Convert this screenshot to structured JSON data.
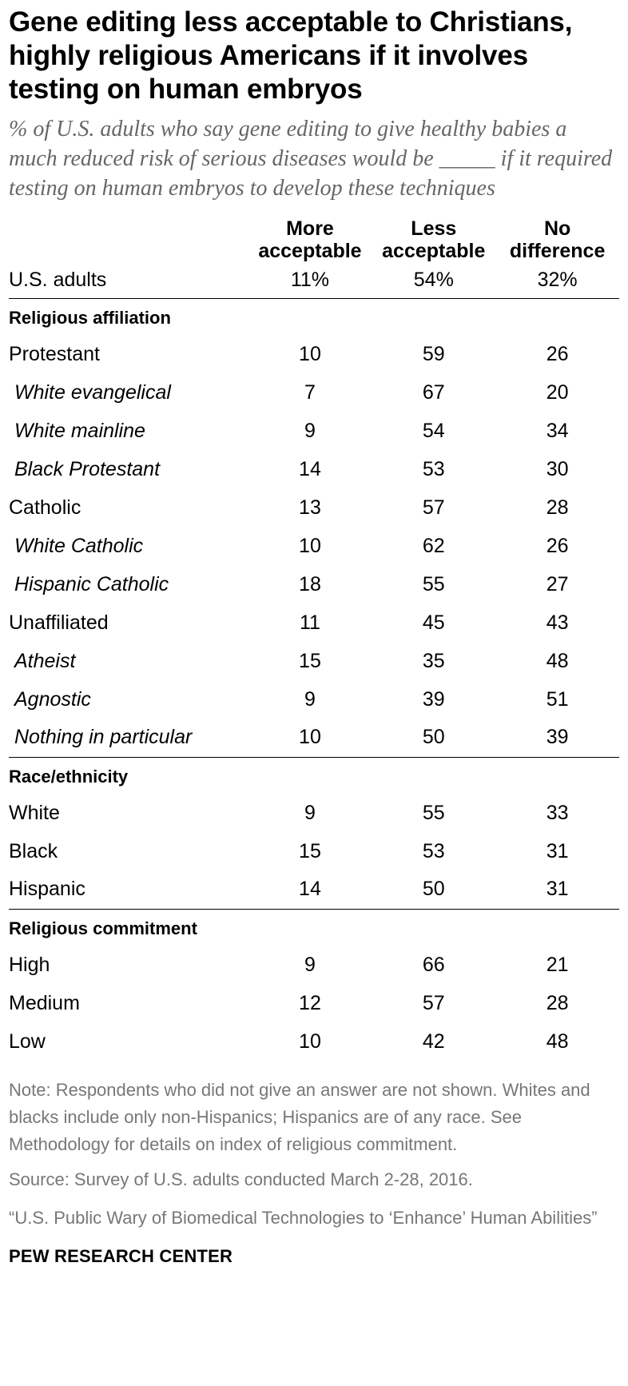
{
  "chart_data": {
    "type": "table",
    "title": "Gene editing less acceptable to Christians, highly religious Americans if it involves testing on human embryos",
    "subtitle": "% of U.S. adults who say gene editing to give healthy babies a much reduced risk of serious diseases would be _____ if it required testing on human embryos to develop these techniques",
    "columns": [
      "More acceptable",
      "Less acceptable",
      "No difference"
    ],
    "columns_lines": [
      [
        "More",
        "acceptable"
      ],
      [
        "Less",
        "acceptable"
      ],
      [
        "No",
        "difference"
      ]
    ],
    "total": {
      "label": "U.S. adults",
      "values": [
        "11%",
        "54%",
        "32%"
      ]
    },
    "groups": [
      {
        "name": "Religious affiliation",
        "rows": [
          {
            "label": "Protestant",
            "sub": false,
            "values": [
              10,
              59,
              26
            ]
          },
          {
            "label": "White evangelical",
            "sub": true,
            "values": [
              7,
              67,
              20
            ]
          },
          {
            "label": "White mainline",
            "sub": true,
            "values": [
              9,
              54,
              34
            ]
          },
          {
            "label": "Black Protestant",
            "sub": true,
            "values": [
              14,
              53,
              30
            ]
          },
          {
            "label": "Catholic",
            "sub": false,
            "values": [
              13,
              57,
              28
            ]
          },
          {
            "label": "White Catholic",
            "sub": true,
            "values": [
              10,
              62,
              26
            ]
          },
          {
            "label": "Hispanic Catholic",
            "sub": true,
            "values": [
              18,
              55,
              27
            ]
          },
          {
            "label": "Unaffiliated",
            "sub": false,
            "values": [
              11,
              45,
              43
            ]
          },
          {
            "label": "Atheist",
            "sub": true,
            "values": [
              15,
              35,
              48
            ]
          },
          {
            "label": "Agnostic",
            "sub": true,
            "values": [
              9,
              39,
              51
            ]
          },
          {
            "label": "Nothing in particular",
            "sub": true,
            "values": [
              10,
              50,
              39
            ]
          }
        ]
      },
      {
        "name": "Race/ethnicity",
        "rows": [
          {
            "label": "White",
            "sub": false,
            "values": [
              9,
              55,
              33
            ]
          },
          {
            "label": "Black",
            "sub": false,
            "values": [
              15,
              53,
              31
            ]
          },
          {
            "label": "Hispanic",
            "sub": false,
            "values": [
              14,
              50,
              31
            ]
          }
        ]
      },
      {
        "name": "Religious commitment",
        "rows": [
          {
            "label": "High",
            "sub": false,
            "values": [
              9,
              66,
              21
            ]
          },
          {
            "label": "Medium",
            "sub": false,
            "values": [
              12,
              57,
              28
            ]
          },
          {
            "label": "Low",
            "sub": false,
            "values": [
              10,
              42,
              48
            ]
          }
        ]
      }
    ]
  },
  "footer": {
    "note": "Note: Respondents who did not give an answer are not shown. Whites and blacks include only non-Hispanics; Hispanics are of any race. See Methodology for details on index of religious commitment.",
    "source": "Source: Survey of U.S. adults conducted March 2-28, 2016.",
    "report": "“U.S. Public Wary of Biomedical Technologies to ‘Enhance’ Human Abilities”",
    "org": "PEW RESEARCH CENTER"
  }
}
